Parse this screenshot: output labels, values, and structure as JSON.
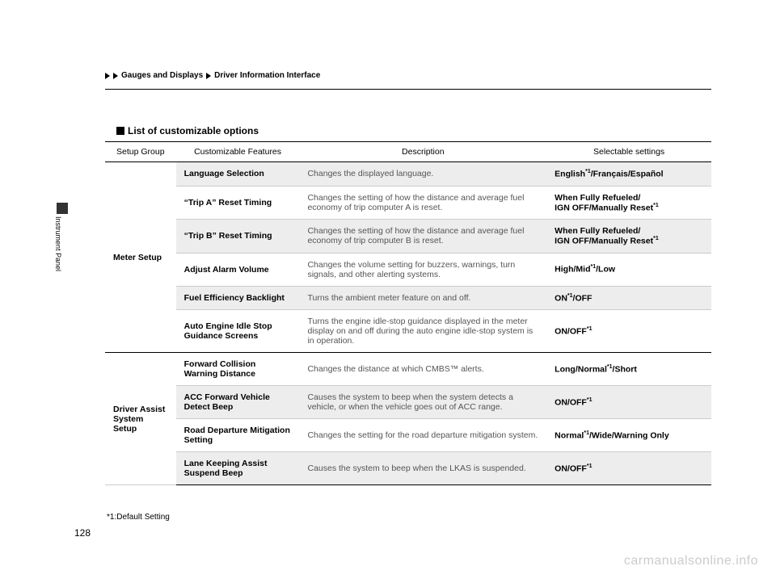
{
  "breadcrumb": {
    "part1": "Gauges and Displays",
    "part2": "Driver Information Interface"
  },
  "side_label": "Instrument Panel",
  "section_title": "List of customizable options",
  "table": {
    "headers": {
      "group": "Setup Group",
      "feature": "Customizable Features",
      "description": "Description",
      "settings": "Selectable settings"
    },
    "groups": [
      {
        "name": "Meter Setup",
        "rows": [
          {
            "feature": "Language Selection",
            "description": "Changes the displayed language.",
            "settings_pre": "English",
            "settings_sup": "*1",
            "settings_post": "/Français/Español",
            "shade": true
          },
          {
            "feature": "“Trip A” Reset Timing",
            "description": "Changes the setting of how the distance and average fuel economy of trip computer A is reset.",
            "settings_pre": "When Fully Refueled/\nIGN OFF/Manually Reset",
            "settings_sup": "*1",
            "settings_post": "",
            "shade": false
          },
          {
            "feature": "“Trip B” Reset Timing",
            "description": "Changes the setting of how the distance and average fuel economy of trip computer B is reset.",
            "settings_pre": "When Fully Refueled/\nIGN OFF/Manually Reset",
            "settings_sup": "*1",
            "settings_post": "",
            "shade": true
          },
          {
            "feature": "Adjust Alarm Volume",
            "description": "Changes the volume setting for buzzers, warnings, turn signals, and other alerting systems.",
            "settings_pre": "High/Mid",
            "settings_sup": "*1",
            "settings_post": "/Low",
            "shade": false
          },
          {
            "feature": "Fuel Efficiency Backlight",
            "description": "Turns the ambient meter feature on and off.",
            "settings_pre": "ON",
            "settings_sup": "*1",
            "settings_post": "/OFF",
            "shade": true
          },
          {
            "feature": "Auto Engine Idle Stop Guidance Screens",
            "description": "Turns the engine idle-stop guidance displayed in the meter display on and off during the auto engine idle-stop system is in operation.",
            "settings_pre": "ON/OFF",
            "settings_sup": "*1",
            "settings_post": "",
            "shade": false
          }
        ]
      },
      {
        "name": "Driver Assist System Setup",
        "rows": [
          {
            "feature": "Forward Collision Warning Distance",
            "description": "Changes the distance at which CMBS™ alerts.",
            "settings_pre": "Long/Normal",
            "settings_sup": "*1",
            "settings_post": "/Short",
            "shade": false
          },
          {
            "feature": "ACC Forward Vehicle Detect Beep",
            "description": "Causes the system to beep when the system detects a vehicle, or when the vehicle goes out of ACC range.",
            "settings_pre": "ON/OFF",
            "settings_sup": "*1",
            "settings_post": "",
            "shade": true
          },
          {
            "feature": "Road Departure Mitigation Setting",
            "description": "Changes the setting for the road departure mitigation system.",
            "settings_pre": "Normal",
            "settings_sup": "*1",
            "settings_post": "/Wide/Warning Only",
            "shade": false
          },
          {
            "feature": "Lane Keeping Assist Suspend Beep",
            "description": "Causes the system to beep when the LKAS is suspended.",
            "settings_pre": "ON/OFF",
            "settings_sup": "*1",
            "settings_post": "",
            "shade": true
          }
        ]
      }
    ]
  },
  "footnote": "*1:Default Setting",
  "page_number": "128",
  "watermark": "carmanualsonline.info"
}
